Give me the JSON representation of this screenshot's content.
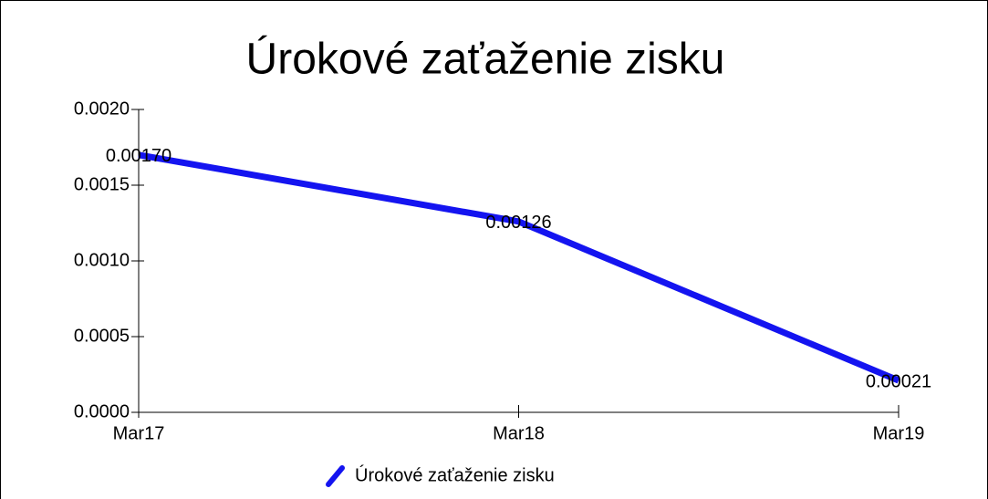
{
  "chart_data": {
    "type": "line",
    "title": "Úrokové zaťaženie zisku",
    "categories": [
      "Mar17",
      "Mar18",
      "Mar19"
    ],
    "series": [
      {
        "name": "Úrokové zaťaženie zisku",
        "color": "#1414f0",
        "values": [
          0.0017,
          0.00126,
          0.00021
        ],
        "value_labels": [
          "0.00170",
          "0.00126",
          "0.00021"
        ]
      }
    ],
    "ylim": [
      0,
      0.002
    ],
    "yticks": [
      {
        "value": 0,
        "label": "0.0000"
      },
      {
        "value": 0.0005,
        "label": "0.0005"
      },
      {
        "value": 0.001,
        "label": "0.0010"
      },
      {
        "value": 0.0015,
        "label": "0.0015"
      },
      {
        "value": 0.002,
        "label": "0.0020"
      }
    ],
    "legend": "bottom"
  }
}
